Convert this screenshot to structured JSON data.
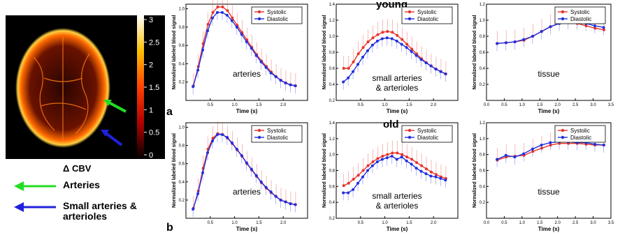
{
  "brain_image": {
    "colorbar_ticks": [
      "3",
      "2.5",
      "2",
      "1.5",
      "1",
      "0.5",
      "0"
    ],
    "caption": "Δ CBV",
    "colors": {
      "arterial_arrow": "#22dd22",
      "small_artery_arrow": "#2020dd"
    }
  },
  "legend_arrows": [
    {
      "label": "Arteries",
      "color": "#22dd22"
    },
    {
      "label": "Small arteries & arterioles",
      "color": "#2020dd"
    }
  ],
  "panel_labels": {
    "a": "a",
    "b": "b"
  },
  "group_titles": {
    "young": "young",
    "old": "old"
  },
  "colors": {
    "systolic": "#e8332a",
    "diastolic": "#2030e0"
  },
  "chart_data": [
    {
      "id": "a-arteries",
      "type": "line",
      "annotation": "arteries",
      "xlabel": "Time (s)",
      "ylabel": "Normalized labeled blood signal",
      "xlim": [
        0,
        2.5
      ],
      "ylim": [
        0,
        1.05
      ],
      "xticks": [
        "0.5",
        "1.0",
        "1.5",
        "2.0"
      ],
      "yticks": [
        "0.2",
        "0.4",
        "0.6",
        "0.8",
        "1.0"
      ],
      "x": [
        0.15,
        0.25,
        0.35,
        0.45,
        0.55,
        0.65,
        0.75,
        0.85,
        0.95,
        1.05,
        1.15,
        1.25,
        1.35,
        1.45,
        1.55,
        1.65,
        1.75,
        1.85,
        1.95,
        2.05,
        2.15,
        2.25
      ],
      "series": [
        {
          "name": "Systolic",
          "values": [
            0.16,
            0.37,
            0.62,
            0.83,
            0.96,
            1.02,
            1.02,
            0.98,
            0.9,
            0.82,
            0.74,
            0.66,
            0.58,
            0.5,
            0.43,
            0.37,
            0.31,
            0.26,
            0.22,
            0.19,
            0.17,
            0.16
          ]
        },
        {
          "name": "Diastolic",
          "values": [
            0.15,
            0.33,
            0.55,
            0.76,
            0.9,
            0.96,
            0.96,
            0.93,
            0.87,
            0.8,
            0.72,
            0.64,
            0.57,
            0.49,
            0.42,
            0.36,
            0.3,
            0.26,
            0.22,
            0.19,
            0.17,
            0.16
          ]
        }
      ],
      "legend": "top-right"
    },
    {
      "id": "a-small",
      "type": "line",
      "annotation": "small arteries\n& arterioles",
      "xlabel": "Time (s)",
      "ylabel": "Normalized labeled blood signal",
      "xlim": [
        0,
        2.5
      ],
      "ylim": [
        0.2,
        1.4
      ],
      "xticks": [
        "0.5",
        "1.0",
        "1.5",
        "2.0"
      ],
      "yticks": [
        "0.2",
        "0.4",
        "0.6",
        "0.8",
        "1.0",
        "1.2",
        "1.4"
      ],
      "x": [
        0.15,
        0.25,
        0.35,
        0.45,
        0.55,
        0.65,
        0.75,
        0.85,
        0.95,
        1.05,
        1.15,
        1.25,
        1.35,
        1.45,
        1.55,
        1.65,
        1.75,
        1.85,
        1.95,
        2.05,
        2.15,
        2.25
      ],
      "series": [
        {
          "name": "Systolic",
          "values": [
            0.6,
            0.6,
            0.68,
            0.78,
            0.86,
            0.93,
            0.98,
            1.02,
            1.05,
            1.06,
            1.05,
            1.01,
            0.96,
            0.9,
            0.84,
            0.78,
            0.72,
            0.67,
            0.63,
            0.59,
            0.56,
            0.53
          ]
        },
        {
          "name": "Diastolic",
          "values": [
            0.43,
            0.48,
            0.56,
            0.65,
            0.74,
            0.82,
            0.89,
            0.94,
            0.97,
            0.98,
            0.97,
            0.94,
            0.9,
            0.86,
            0.81,
            0.76,
            0.71,
            0.67,
            0.63,
            0.59,
            0.56,
            0.53
          ]
        }
      ],
      "legend": "top-right"
    },
    {
      "id": "a-tissue",
      "type": "line",
      "annotation": "tissue",
      "xlabel": "Time (s)",
      "ylabel": "Normalized labeled blood signal",
      "xlim": [
        0,
        3.5
      ],
      "ylim": [
        0,
        1.2
      ],
      "xticks": [
        "0.0",
        "0.5",
        "1.0",
        "1.5",
        "2.0",
        "2.5",
        "3.0",
        "3.5"
      ],
      "yticks": [
        "0.2",
        "0.4",
        "0.6",
        "0.8",
        "1.0",
        "1.2"
      ],
      "x": [
        0.3,
        0.55,
        0.8,
        1.05,
        1.3,
        1.55,
        1.8,
        2.05,
        2.3,
        2.55,
        2.8,
        3.05,
        3.3
      ],
      "series": [
        {
          "name": "Systolic",
          "values": [
            0.71,
            0.72,
            0.73,
            0.75,
            0.8,
            0.86,
            0.92,
            0.96,
            0.97,
            0.96,
            0.93,
            0.9,
            0.88
          ]
        },
        {
          "name": "Diastolic",
          "values": [
            0.71,
            0.72,
            0.73,
            0.76,
            0.8,
            0.86,
            0.92,
            0.96,
            0.98,
            0.98,
            0.96,
            0.93,
            0.91
          ]
        }
      ],
      "legend": "top-right"
    },
    {
      "id": "b-arteries",
      "type": "line",
      "annotation": "arteries",
      "xlabel": "Time (s)",
      "ylabel": "Normalized labeled blood signal",
      "xlim": [
        0,
        2.5
      ],
      "ylim": [
        0,
        1.05
      ],
      "xticks": [
        "0.5",
        "1.0",
        "1.5",
        "2.0"
      ],
      "yticks": [
        "0.2",
        "0.4",
        "0.6",
        "0.8",
        "1.0"
      ],
      "x": [
        0.15,
        0.25,
        0.35,
        0.45,
        0.55,
        0.65,
        0.75,
        0.85,
        0.95,
        1.05,
        1.15,
        1.25,
        1.35,
        1.45,
        1.55,
        1.65,
        1.75,
        1.85,
        1.95,
        2.05,
        2.15,
        2.25
      ],
      "series": [
        {
          "name": "Systolic",
          "values": [
            0.11,
            0.3,
            0.55,
            0.76,
            0.88,
            0.93,
            0.92,
            0.88,
            0.82,
            0.75,
            0.68,
            0.6,
            0.53,
            0.46,
            0.39,
            0.33,
            0.28,
            0.24,
            0.2,
            0.18,
            0.16,
            0.15
          ]
        },
        {
          "name": "Diastolic",
          "values": [
            0.1,
            0.27,
            0.5,
            0.72,
            0.85,
            0.92,
            0.92,
            0.89,
            0.83,
            0.76,
            0.69,
            0.61,
            0.54,
            0.47,
            0.4,
            0.34,
            0.29,
            0.24,
            0.2,
            0.18,
            0.16,
            0.15
          ]
        }
      ],
      "legend": "top-right"
    },
    {
      "id": "b-small",
      "type": "line",
      "annotation": "small arteries\n& arterioles",
      "xlabel": "Time (s)",
      "ylabel": "Normalized labeled blood signal",
      "xlim": [
        0,
        2.5
      ],
      "ylim": [
        0.2,
        1.4
      ],
      "xticks": [
        "0.5",
        "1.0",
        "1.5",
        "2.0"
      ],
      "yticks": [
        "0.2",
        "0.4",
        "0.6",
        "0.8",
        "1.0",
        "1.2",
        "1.4"
      ],
      "x": [
        0.15,
        0.25,
        0.35,
        0.45,
        0.55,
        0.65,
        0.75,
        0.85,
        0.95,
        1.05,
        1.15,
        1.25,
        1.35,
        1.45,
        1.55,
        1.65,
        1.75,
        1.85,
        1.95,
        2.05,
        2.15,
        2.25
      ],
      "series": [
        {
          "name": "Systolic",
          "values": [
            0.61,
            0.64,
            0.69,
            0.74,
            0.8,
            0.86,
            0.91,
            0.95,
            0.98,
            1.0,
            1.02,
            1.02,
            1.0,
            0.97,
            0.94,
            0.9,
            0.86,
            0.82,
            0.78,
            0.75,
            0.72,
            0.7
          ]
        },
        {
          "name": "Diastolic",
          "values": [
            0.52,
            0.52,
            0.56,
            0.64,
            0.72,
            0.8,
            0.86,
            0.91,
            0.94,
            0.96,
            0.98,
            0.94,
            0.97,
            0.92,
            0.88,
            0.83,
            0.79,
            0.76,
            0.73,
            0.72,
            0.7,
            0.68
          ]
        }
      ],
      "legend": "top-right"
    },
    {
      "id": "b-tissue",
      "type": "line",
      "annotation": "tissue",
      "xlabel": "Time (s)",
      "ylabel": "Normalized labeled blood signal",
      "xlim": [
        0,
        3.5
      ],
      "ylim": [
        0,
        1.2
      ],
      "xticks": [
        "0.0",
        "0.5",
        "1.0",
        "1.5",
        "2.0",
        "2.5",
        "3.0",
        "3.5"
      ],
      "yticks": [
        "0.2",
        "0.4",
        "0.6",
        "0.8",
        "1.0",
        "1.2"
      ],
      "x": [
        0.3,
        0.55,
        0.8,
        1.05,
        1.3,
        1.55,
        1.8,
        2.05,
        2.3,
        2.55,
        2.8,
        3.05,
        3.3
      ],
      "series": [
        {
          "name": "Systolic",
          "values": [
            0.73,
            0.77,
            0.78,
            0.79,
            0.84,
            0.88,
            0.92,
            0.94,
            0.94,
            0.94,
            0.93,
            0.92,
            0.92
          ]
        },
        {
          "name": "Diastolic",
          "values": [
            0.74,
            0.79,
            0.77,
            0.81,
            0.87,
            0.92,
            0.95,
            0.96,
            0.96,
            0.95,
            0.95,
            0.93,
            0.92
          ]
        }
      ],
      "legend": "top-right"
    }
  ]
}
